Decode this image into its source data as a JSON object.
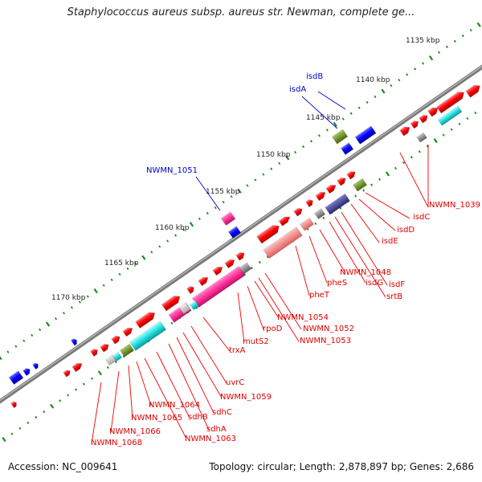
{
  "title": "Staphylococcus aureus subsp. aureus str. Newman, complete ge...",
  "footer": {
    "accession": "Accession: NC_009641",
    "summary": "Topology: circular; Length: 2,878,897 bp; Genes: 2,686"
  },
  "colors": {
    "backbone": "#808080",
    "tick": "#1a8f1a",
    "forward": "#ff0000",
    "pink": "#ff3399",
    "cyan": "#22e0e0",
    "olive": "#6b8e23",
    "blue": "#0000ff",
    "navy": "#3a3a9a",
    "gray": "#888888",
    "label_red": "#dd0000",
    "label_blue": "#0000cc"
  },
  "scale_labels": [
    "1135 kbp",
    "1140 kbp",
    "1145 kbp",
    "1150 kbp",
    "1155 kbp",
    "1160 kbp",
    "1165 kbp",
    "1170 kbp"
  ],
  "red_labels": [
    "NWMN_1039",
    "isdC",
    "isdD",
    "isdE",
    "isdF",
    "srtB",
    "isdG",
    "NWMN_1048",
    "pheS",
    "pheT",
    "NWMN_1052",
    "NWMN_1053",
    "NWMN_1054",
    "rpoD",
    "mutS2",
    "trxA",
    "uvrC",
    "NWMN_1059",
    "sdhC",
    "sdhA",
    "sdhB",
    "NWMN_1063",
    "NWMN_1064",
    "NWMN_1065",
    "NWMN_1066",
    "NWMN_1068"
  ],
  "blue_labels": [
    "isdB",
    "isdA",
    "NWMN_1051"
  ]
}
